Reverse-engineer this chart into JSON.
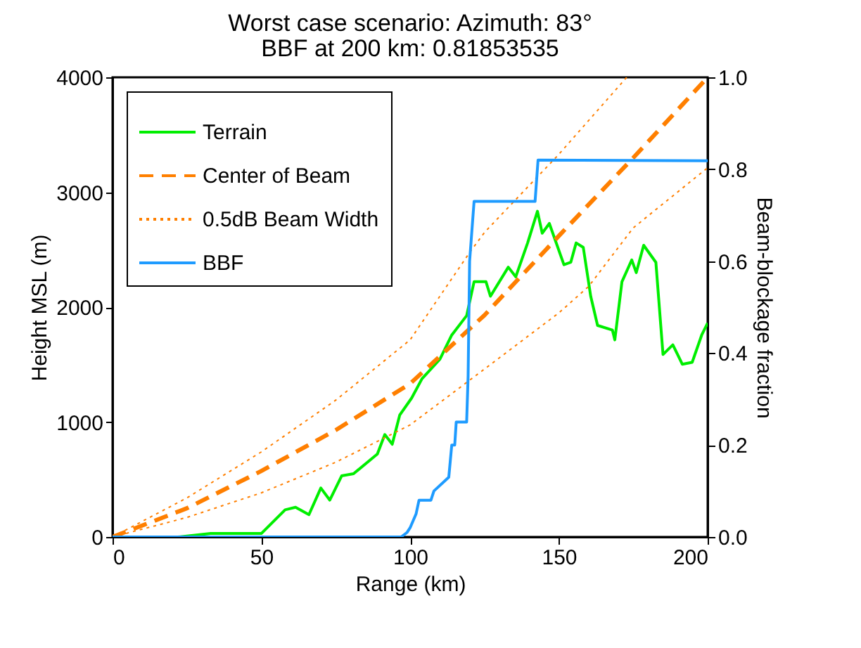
{
  "chart_data": {
    "type": "line",
    "title": "Worst case scenario: Azimuth: 83°",
    "subtitle": "BBF at 200 km: 0.81853535",
    "xlabel": "Range (km)",
    "ylabel": "Height MSL (m)",
    "y2label": "Beam-blockage fraction",
    "xlim": [
      0,
      200
    ],
    "xticks": [
      0,
      50,
      100,
      150,
      200
    ],
    "ylim": [
      0,
      4000
    ],
    "yticks": [
      0,
      1000,
      2000,
      3000,
      4000
    ],
    "y2lim": [
      0,
      1
    ],
    "y2ticks": [
      {
        "value": 0,
        "label": "0.0"
      },
      {
        "value": 0.2,
        "label": "0.2"
      },
      {
        "value": 0.4,
        "label": "0.4"
      },
      {
        "value": 0.6,
        "label": "0.6"
      },
      {
        "value": 0.8,
        "label": "0.8"
      },
      {
        "value": 1,
        "label": "1.0"
      }
    ],
    "grid": false,
    "legend": "top left",
    "series": [
      {
        "name": "Terrain",
        "color": "#00ee00",
        "line_style": "solid",
        "x": [
          0,
          22,
          33,
          50,
          58,
          61.5,
          66,
          70,
          73,
          77,
          81,
          89,
          91.5,
          94,
          96.5,
          100.5,
          104,
          110,
          114,
          119,
          121.5,
          125.5,
          127,
          133,
          135.5,
          139.5,
          142.8,
          144.4,
          146.8,
          151.7,
          154,
          155.8,
          158.2,
          160.7,
          163,
          168,
          168.8,
          171.2,
          174.5,
          176,
          178.5,
          182.6,
          185,
          188.3,
          191.5,
          194.8,
          198,
          200
        ],
        "values": [
          0,
          0,
          30,
          30,
          236,
          258,
          194,
          426,
          321,
          532,
          550,
          722,
          891,
          807,
          1060,
          1208,
          1377,
          1546,
          1757,
          1926,
          2221,
          2221,
          2095,
          2348,
          2264,
          2559,
          2834,
          2644,
          2728,
          2369,
          2390,
          2559,
          2520,
          2095,
          1841,
          1800,
          1715,
          2221,
          2411,
          2300,
          2538,
          2390,
          1588,
          1672,
          1503,
          1520,
          1757,
          1862
        ]
      },
      {
        "name": "Center of Beam",
        "color": "#ff7f00",
        "line_style": "dashed",
        "x": [
          0,
          25,
          50,
          75,
          100,
          125,
          150,
          175,
          200
        ],
        "values": [
          0,
          250,
          574,
          930,
          1334,
          1930,
          2620,
          3300,
          4000
        ]
      },
      {
        "name": "0.5dB Beam Width",
        "color": "#ff7f00",
        "line_style": "dotted",
        "x": [
          0,
          25,
          50,
          75,
          100,
          120,
          125,
          150,
          172.8
        ],
        "values": [
          0,
          340,
          740,
          1190,
          1715,
          2475,
          2650,
          3330,
          4000
        ]
      },
      {
        "color": "#ff7f00",
        "line_style": "dotted",
        "x": [
          0,
          25,
          50,
          75,
          100,
          125,
          150,
          160,
          175,
          200
        ],
        "values": [
          0,
          170,
          384,
          650,
          975,
          1461,
          1950,
          2180,
          2690,
          3213
        ]
      },
      {
        "name": "BBF",
        "color": "#1e9bff",
        "line_style": "solid",
        "axis": "y2",
        "x": [
          0,
          97,
          99,
          100,
          102,
          103,
          107,
          108,
          113,
          114,
          115,
          115.5,
          119,
          119.5,
          120,
          121.5,
          142,
          143,
          200
        ],
        "values": [
          0,
          0,
          0.01,
          0.02,
          0.05,
          0.08,
          0.08,
          0.1,
          0.13,
          0.2,
          0.2,
          0.25,
          0.25,
          0.35,
          0.6,
          0.73,
          0.73,
          0.82,
          0.81853535
        ]
      }
    ]
  }
}
